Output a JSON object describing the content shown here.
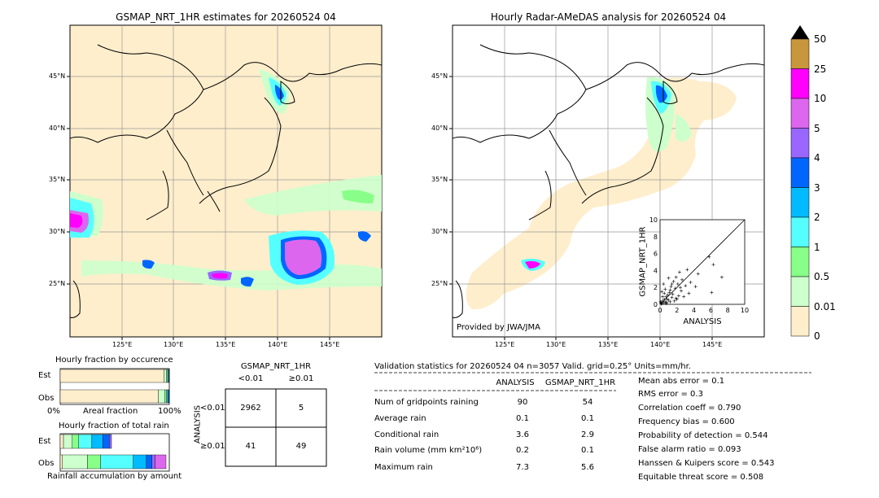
{
  "left_map": {
    "title": "GSMAP_NRT_1HR estimates for 20260524 04",
    "lat_labels": [
      "45°N",
      "40°N",
      "35°N",
      "30°N",
      "25°N"
    ],
    "lon_labels": [
      "125°E",
      "130°E",
      "135°E",
      "140°E",
      "145°E"
    ]
  },
  "right_map": {
    "title": "Hourly Radar-AMeDAS analysis for 20260524 04",
    "lat_labels": [
      "45°N",
      "40°N",
      "35°N",
      "30°N",
      "25°N"
    ],
    "lon_labels": [
      "125°E",
      "130°E",
      "135°E",
      "140°E",
      "145°E"
    ],
    "credit": "Provided by JWA/JMA"
  },
  "colorbar": {
    "labels": [
      "50",
      "25",
      "10",
      "5",
      "4",
      "3",
      "2",
      "1",
      "0.5",
      "0.01",
      "0"
    ],
    "colors": [
      "#c8963c",
      "#ff00ff",
      "#dd66ee",
      "#9966ff",
      "#0066ff",
      "#00bbff",
      "#55ffff",
      "#88ff88",
      "#ccffcc",
      "#ffeecc"
    ]
  },
  "chart_data": [
    {
      "type": "scatter",
      "xlabel": "ANALYSIS",
      "ylabel": "GSMAP_NRT_1HR",
      "xlim": [
        0,
        10
      ],
      "ylim": [
        0,
        10
      ],
      "x_ticks": [
        "0",
        "2",
        "4",
        "6",
        "8",
        "10"
      ],
      "y_ticks": [
        "0",
        "2",
        "4",
        "6",
        "8",
        "10"
      ],
      "points": [
        [
          0.1,
          0.2
        ],
        [
          0.2,
          0.1
        ],
        [
          0.3,
          0.4
        ],
        [
          0.4,
          0.2
        ],
        [
          0.5,
          0.6
        ],
        [
          0.6,
          0.3
        ],
        [
          0.7,
          0.9
        ],
        [
          0.8,
          0.2
        ],
        [
          0.9,
          1.1
        ],
        [
          1.0,
          0.5
        ],
        [
          1.1,
          1.4
        ],
        [
          1.2,
          0.3
        ],
        [
          1.3,
          2.1
        ],
        [
          1.4,
          0.8
        ],
        [
          1.5,
          1.2
        ],
        [
          1.6,
          2.7
        ],
        [
          1.7,
          0.4
        ],
        [
          1.8,
          1.9
        ],
        [
          1.9,
          3.2
        ],
        [
          2.0,
          0.6
        ],
        [
          2.1,
          2.4
        ],
        [
          2.2,
          1.0
        ],
        [
          2.3,
          3.8
        ],
        [
          2.5,
          1.6
        ],
        [
          2.6,
          2.9
        ],
        [
          2.8,
          0.9
        ],
        [
          3.0,
          2.2
        ],
        [
          3.2,
          4.1
        ],
        [
          3.4,
          1.3
        ],
        [
          3.6,
          2.6
        ],
        [
          0.2,
          1.5
        ],
        [
          0.4,
          2.4
        ],
        [
          0.6,
          1.8
        ],
        [
          1.0,
          3.1
        ],
        [
          1.4,
          2.4
        ],
        [
          0.3,
          0.9
        ],
        [
          0.5,
          1.3
        ],
        [
          0.8,
          0.6
        ],
        [
          1.2,
          1.7
        ],
        [
          2.4,
          2.0
        ],
        [
          4.2,
          2.1
        ],
        [
          5.8,
          5.6
        ],
        [
          6.3,
          4.7
        ],
        [
          6.1,
          1.4
        ],
        [
          7.3,
          3.2
        ],
        [
          4.5,
          3.6
        ],
        [
          0.15,
          0.05
        ],
        [
          0.05,
          0.3
        ],
        [
          0.7,
          0.1
        ],
        [
          1.9,
          0.7
        ]
      ]
    },
    {
      "type": "bar",
      "title": "Hourly fraction by occurence",
      "xlabel": "Areal fraction",
      "categories": [
        "Est",
        "Obs"
      ],
      "x_ticks": [
        "0%",
        "100%"
      ],
      "series": [
        {
          "color": "#ffeecc",
          "values": [
            0.95,
            0.9
          ]
        },
        {
          "color": "#ccffcc",
          "values": [
            0.025,
            0.06
          ]
        },
        {
          "color": "#88ff88",
          "values": [
            0.01,
            0.015
          ]
        },
        {
          "color": "#55ffff",
          "values": [
            0.008,
            0.01
          ]
        },
        {
          "color": "#00bbff",
          "values": [
            0.004,
            0.008
          ]
        },
        {
          "color": "#0066ff",
          "values": [
            0.003,
            0.007
          ]
        }
      ]
    },
    {
      "type": "bar",
      "title": "Hourly fraction of total rain",
      "xlabel": "Rainfall accumulation by amount",
      "categories": [
        "Est",
        "Obs"
      ],
      "series": [
        {
          "color": "#ffeecc",
          "values": [
            0.03,
            0.02
          ]
        },
        {
          "color": "#ccffcc",
          "values": [
            0.08,
            0.23
          ]
        },
        {
          "color": "#88ff88",
          "values": [
            0.06,
            0.12
          ]
        },
        {
          "color": "#55ffff",
          "values": [
            0.12,
            0.3
          ]
        },
        {
          "color": "#00bbff",
          "values": [
            0.1,
            0.12
          ]
        },
        {
          "color": "#0066ff",
          "values": [
            0.06,
            0.05
          ]
        },
        {
          "color": "#9966ff",
          "values": [
            0.02,
            0.03
          ]
        },
        {
          "color": "#dd66ee",
          "values": [
            0.0,
            0.1
          ]
        }
      ]
    }
  ],
  "contingency": {
    "title": "GSMAP_NRT_1HR",
    "col_headers": [
      "<0.01",
      "≥0.01"
    ],
    "row_label": "ANALYSIS",
    "row_headers": [
      "<0.01",
      "≥0.01"
    ],
    "cells": [
      [
        "2962",
        "5"
      ],
      [
        "41",
        "49"
      ]
    ]
  },
  "validation": {
    "header": "Validation statistics for 20260524 04  n=3057 Valid. grid=0.25° Units=mm/hr.",
    "col_analysis": "ANALYSIS",
    "col_gsmap": "GSMAP_NRT_1HR",
    "rows": [
      {
        "label": "Num of gridpoints raining",
        "a": "90",
        "g": "54"
      },
      {
        "label": "Average rain",
        "a": "0.1",
        "g": "0.1"
      },
      {
        "label": "Conditional rain",
        "a": "3.6",
        "g": "2.9"
      },
      {
        "label": "Rain volume (mm km²10⁶)",
        "a": "0.2",
        "g": "0.1"
      },
      {
        "label": "Maximum rain",
        "a": "7.3",
        "g": "5.6"
      }
    ],
    "scores": [
      "Mean abs error =    0.1",
      "RMS error =    0.3",
      "Correlation coeff =  0.790",
      "Frequency bias =  0.600",
      "Probability of detection =  0.544",
      "False alarm ratio =  0.093",
      "Hanssen & Kuipers score =  0.543",
      "Equitable threat score =  0.508"
    ]
  }
}
